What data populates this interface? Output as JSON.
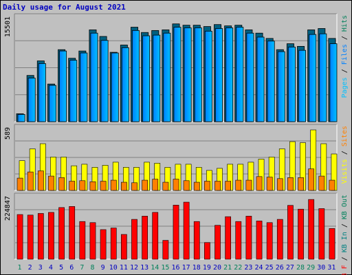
{
  "title": "Daily usage for August 2021",
  "colors": {
    "title": "#0000c0",
    "background": "#c0c0c0",
    "pages": "#00c0ff",
    "files": "#0080ff",
    "hits": "#00805a",
    "visits": "#ffff00",
    "sites": "#ff8000",
    "kb_in": "#008080",
    "kb_out": "#00805a",
    "kb_f": "#ff0000",
    "weekend_day": "#00805a",
    "weekday": "#0000c0"
  },
  "chart_data": [
    {
      "type": "bar",
      "title": "Daily usage for August 2021",
      "panel": "hits",
      "max_label": "15501",
      "ylim": [
        0,
        15501
      ],
      "legend": [
        {
          "name": "Pages",
          "key": "pages"
        },
        {
          "name": "Files",
          "key": "files"
        },
        {
          "name": "Hits",
          "key": "hits"
        }
      ],
      "categories": [
        "1",
        "2",
        "3",
        "4",
        "5",
        "6",
        "7",
        "8",
        "9",
        "10",
        "11",
        "12",
        "13",
        "14",
        "15",
        "16",
        "17",
        "18",
        "19",
        "20",
        "21",
        "22",
        "23",
        "24",
        "25",
        "26",
        "27",
        "28",
        "29",
        "30",
        "31"
      ],
      "series": [
        {
          "name": "Hits",
          "values": [
            1200,
            7000,
            9200,
            5700,
            10900,
            9600,
            10700,
            13900,
            12900,
            10500,
            11600,
            14300,
            13500,
            13800,
            13900,
            14800,
            14600,
            14600,
            14400,
            14700,
            14500,
            14600,
            13900,
            13400,
            12600,
            10900,
            11800,
            11400,
            13900,
            14100,
            12600
          ]
        },
        {
          "name": "Files",
          "values": [
            1100,
            6600,
            8800,
            5500,
            10700,
            9300,
            10400,
            13400,
            12300,
            10400,
            11200,
            13800,
            13000,
            13100,
            13400,
            14300,
            14200,
            14200,
            13700,
            14100,
            14200,
            14300,
            13400,
            12800,
            12200,
            10600,
            11300,
            10800,
            13200,
            13300,
            11800
          ]
        }
      ]
    },
    {
      "type": "bar",
      "panel": "visits",
      "max_label": "589",
      "ylim": [
        0,
        589
      ],
      "legend": [
        {
          "name": "Visits",
          "key": "visits"
        },
        {
          "name": "Sites",
          "key": "sites"
        }
      ],
      "categories": [
        "1",
        "2",
        "3",
        "4",
        "5",
        "6",
        "7",
        "8",
        "9",
        "10",
        "11",
        "12",
        "13",
        "14",
        "15",
        "16",
        "17",
        "18",
        "19",
        "20",
        "21",
        "22",
        "23",
        "24",
        "25",
        "26",
        "27",
        "28",
        "29",
        "30",
        "31"
      ],
      "series": [
        {
          "name": "Visits",
          "values": [
            290,
            405,
            455,
            325,
            325,
            240,
            255,
            225,
            245,
            275,
            225,
            225,
            275,
            265,
            225,
            255,
            255,
            225,
            195,
            215,
            255,
            255,
            275,
            305,
            325,
            405,
            475,
            465,
            589,
            455,
            355
          ]
        },
        {
          "name": "Sites",
          "values": [
            120,
            180,
            190,
            140,
            125,
            90,
            95,
            85,
            90,
            100,
            80,
            75,
            100,
            110,
            80,
            110,
            95,
            80,
            90,
            90,
            90,
            100,
            100,
            135,
            130,
            115,
            125,
            125,
            210,
            140,
            100
          ]
        }
      ]
    },
    {
      "type": "bar",
      "panel": "kbytes",
      "max_label": "224847",
      "ylim": [
        0,
        224847
      ],
      "legend": [
        {
          "name": "KB F",
          "key": "kb_f"
        },
        {
          "name": "KB In",
          "key": "kb_in"
        },
        {
          "name": "KB Out",
          "key": "kb_out"
        }
      ],
      "categories": [
        "1",
        "2",
        "3",
        "4",
        "5",
        "6",
        "7",
        "8",
        "9",
        "10",
        "11",
        "12",
        "13",
        "14",
        "15",
        "16",
        "17",
        "18",
        "19",
        "20",
        "21",
        "22",
        "23",
        "24",
        "25",
        "26",
        "27",
        "28",
        "29",
        "30",
        "31"
      ],
      "series": [
        {
          "name": "KB F",
          "values": [
            166000,
            164000,
            170000,
            174000,
            192000,
            196000,
            140000,
            136000,
            110000,
            116000,
            92000,
            148000,
            160000,
            174000,
            70000,
            201000,
            212000,
            140000,
            62000,
            126000,
            158000,
            140000,
            160000,
            142000,
            136000,
            148000,
            200000,
            186000,
            222000,
            188000,
            114000
          ]
        }
      ]
    }
  ],
  "weekend_days": [
    1,
    7,
    8,
    14,
    15,
    21,
    22,
    28,
    29
  ]
}
